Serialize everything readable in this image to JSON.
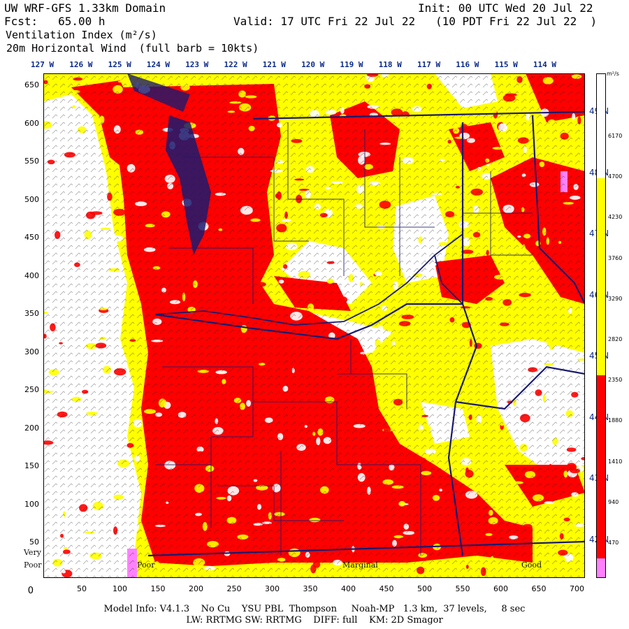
{
  "header": {
    "title": "UW WRF-GFS 1.33km Domain",
    "init": "Init: 00 UTC Wed 20 Jul 22",
    "fcst": "Fcst:   65.00 h",
    "valid": "Valid: 17 UTC Fri 22 Jul 22   (10 PDT Fri 22 Jul 22  )",
    "field": "Ventilation Index (m²/s)",
    "wind": " 20m Horizontal Wind  (full barb = 10kts)"
  },
  "top_axis": {
    "labels": [
      "127 W",
      "126 W",
      "125 W",
      "124 W",
      "123 W",
      "122 W",
      "121 W",
      "120 W",
      "119 W",
      "118 W",
      "117 W",
      "116 W",
      "115 W",
      "114 W"
    ]
  },
  "left_axis": {
    "labels": [
      "650",
      "600",
      "550",
      "500",
      "450",
      "400",
      "350",
      "300",
      "250",
      "200",
      "150",
      "100",
      "50",
      "0"
    ]
  },
  "bottom_axis": {
    "labels": [
      "50",
      "100",
      "150",
      "200",
      "250",
      "300",
      "350",
      "400",
      "450",
      "500",
      "550",
      "600",
      "650",
      "700"
    ]
  },
  "lat_labels": [
    "49 N",
    "48 N",
    "47 N",
    "46 N",
    "45 N",
    "44 N",
    "43 N",
    "42 N"
  ],
  "colorbar": {
    "unit": "m²/s",
    "labels": [
      "6170",
      "4700",
      "4230",
      "3760",
      "3290",
      "2820",
      "2350",
      "1880",
      "1410",
      "940",
      "470"
    ],
    "colors": {
      "none": "#ffffff",
      "poor": "#ff0000",
      "marginal": "#ffff00",
      "good": "#ffffff",
      "very_poor": "#ff80ff",
      "boundary": "#1a1a6e",
      "contour": "#8b0000"
    }
  },
  "categories": {
    "very_poor_1": "Very",
    "very_poor_2": "Poor",
    "poor": "Poor",
    "marginal": "Marginal",
    "good": "Good"
  },
  "footer": {
    "line1": "Model Info: V4.1.3    No Cu    YSU PBL  Thompson     Noah-MP   1.3 km,  37 levels,     8 sec",
    "line2": "LW: RRTMG SW: RRTMG    DIFF: full    KM: 2D Smagor"
  }
}
